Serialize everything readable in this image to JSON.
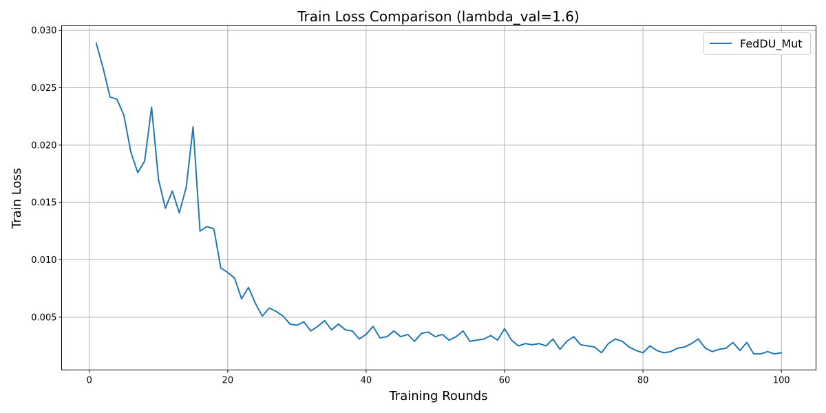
{
  "chart_data": {
    "type": "line",
    "title": "Train Loss Comparison (lambda_val=1.6)",
    "xlabel": "Training Rounds",
    "ylabel": "Train Loss",
    "xlim": [
      -4,
      105
    ],
    "ylim": [
      0.0004,
      0.0304
    ],
    "xticks": [
      0,
      20,
      40,
      60,
      80,
      100
    ],
    "yticks": [
      0.005,
      0.01,
      0.015,
      0.02,
      0.025,
      0.03
    ],
    "ytick_labels": [
      "0.005",
      "0.010",
      "0.015",
      "0.020",
      "0.025",
      "0.030"
    ],
    "grid": true,
    "legend": "top-right",
    "series": [
      {
        "name": "FedDU_Mut",
        "color": "#1f77b4",
        "x": [
          1,
          2,
          3,
          4,
          5,
          6,
          7,
          8,
          9,
          10,
          11,
          12,
          13,
          14,
          15,
          16,
          17,
          18,
          19,
          20,
          21,
          22,
          23,
          24,
          25,
          26,
          27,
          28,
          29,
          30,
          31,
          32,
          33,
          34,
          35,
          36,
          37,
          38,
          39,
          40,
          41,
          42,
          43,
          44,
          45,
          46,
          47,
          48,
          49,
          50,
          51,
          52,
          53,
          54,
          55,
          56,
          57,
          58,
          59,
          60,
          61,
          62,
          63,
          64,
          65,
          66,
          67,
          68,
          69,
          70,
          71,
          72,
          73,
          74,
          75,
          76,
          77,
          78,
          79,
          80,
          81,
          82,
          83,
          84,
          85,
          86,
          87,
          88,
          89,
          90,
          91,
          92,
          93,
          94,
          95,
          96,
          97,
          98,
          99,
          100
        ],
        "values": [
          0.0289,
          0.0267,
          0.0242,
          0.024,
          0.0226,
          0.0194,
          0.0176,
          0.0186,
          0.0233,
          0.017,
          0.0145,
          0.016,
          0.0141,
          0.0163,
          0.0216,
          0.0125,
          0.0129,
          0.0127,
          0.0093,
          0.0089,
          0.0084,
          0.0066,
          0.0076,
          0.0062,
          0.0051,
          0.0058,
          0.0055,
          0.0051,
          0.0044,
          0.0043,
          0.0046,
          0.0038,
          0.0042,
          0.0047,
          0.0039,
          0.0044,
          0.0039,
          0.0038,
          0.0031,
          0.0035,
          0.0042,
          0.0032,
          0.0033,
          0.0038,
          0.0033,
          0.0035,
          0.0029,
          0.0036,
          0.0037,
          0.0033,
          0.0035,
          0.003,
          0.0033,
          0.0038,
          0.0029,
          0.003,
          0.0031,
          0.0034,
          0.003,
          0.004,
          0.003,
          0.0025,
          0.0027,
          0.0026,
          0.0027,
          0.0025,
          0.0031,
          0.0022,
          0.0029,
          0.0033,
          0.0026,
          0.0025,
          0.0024,
          0.0019,
          0.0027,
          0.0031,
          0.0029,
          0.0024,
          0.0021,
          0.0019,
          0.0025,
          0.0021,
          0.0019,
          0.002,
          0.0023,
          0.0024,
          0.0027,
          0.0031,
          0.0023,
          0.002,
          0.0022,
          0.0023,
          0.0028,
          0.0021,
          0.0028,
          0.0018,
          0.0018,
          0.002,
          0.0018,
          0.0019
        ]
      }
    ]
  }
}
